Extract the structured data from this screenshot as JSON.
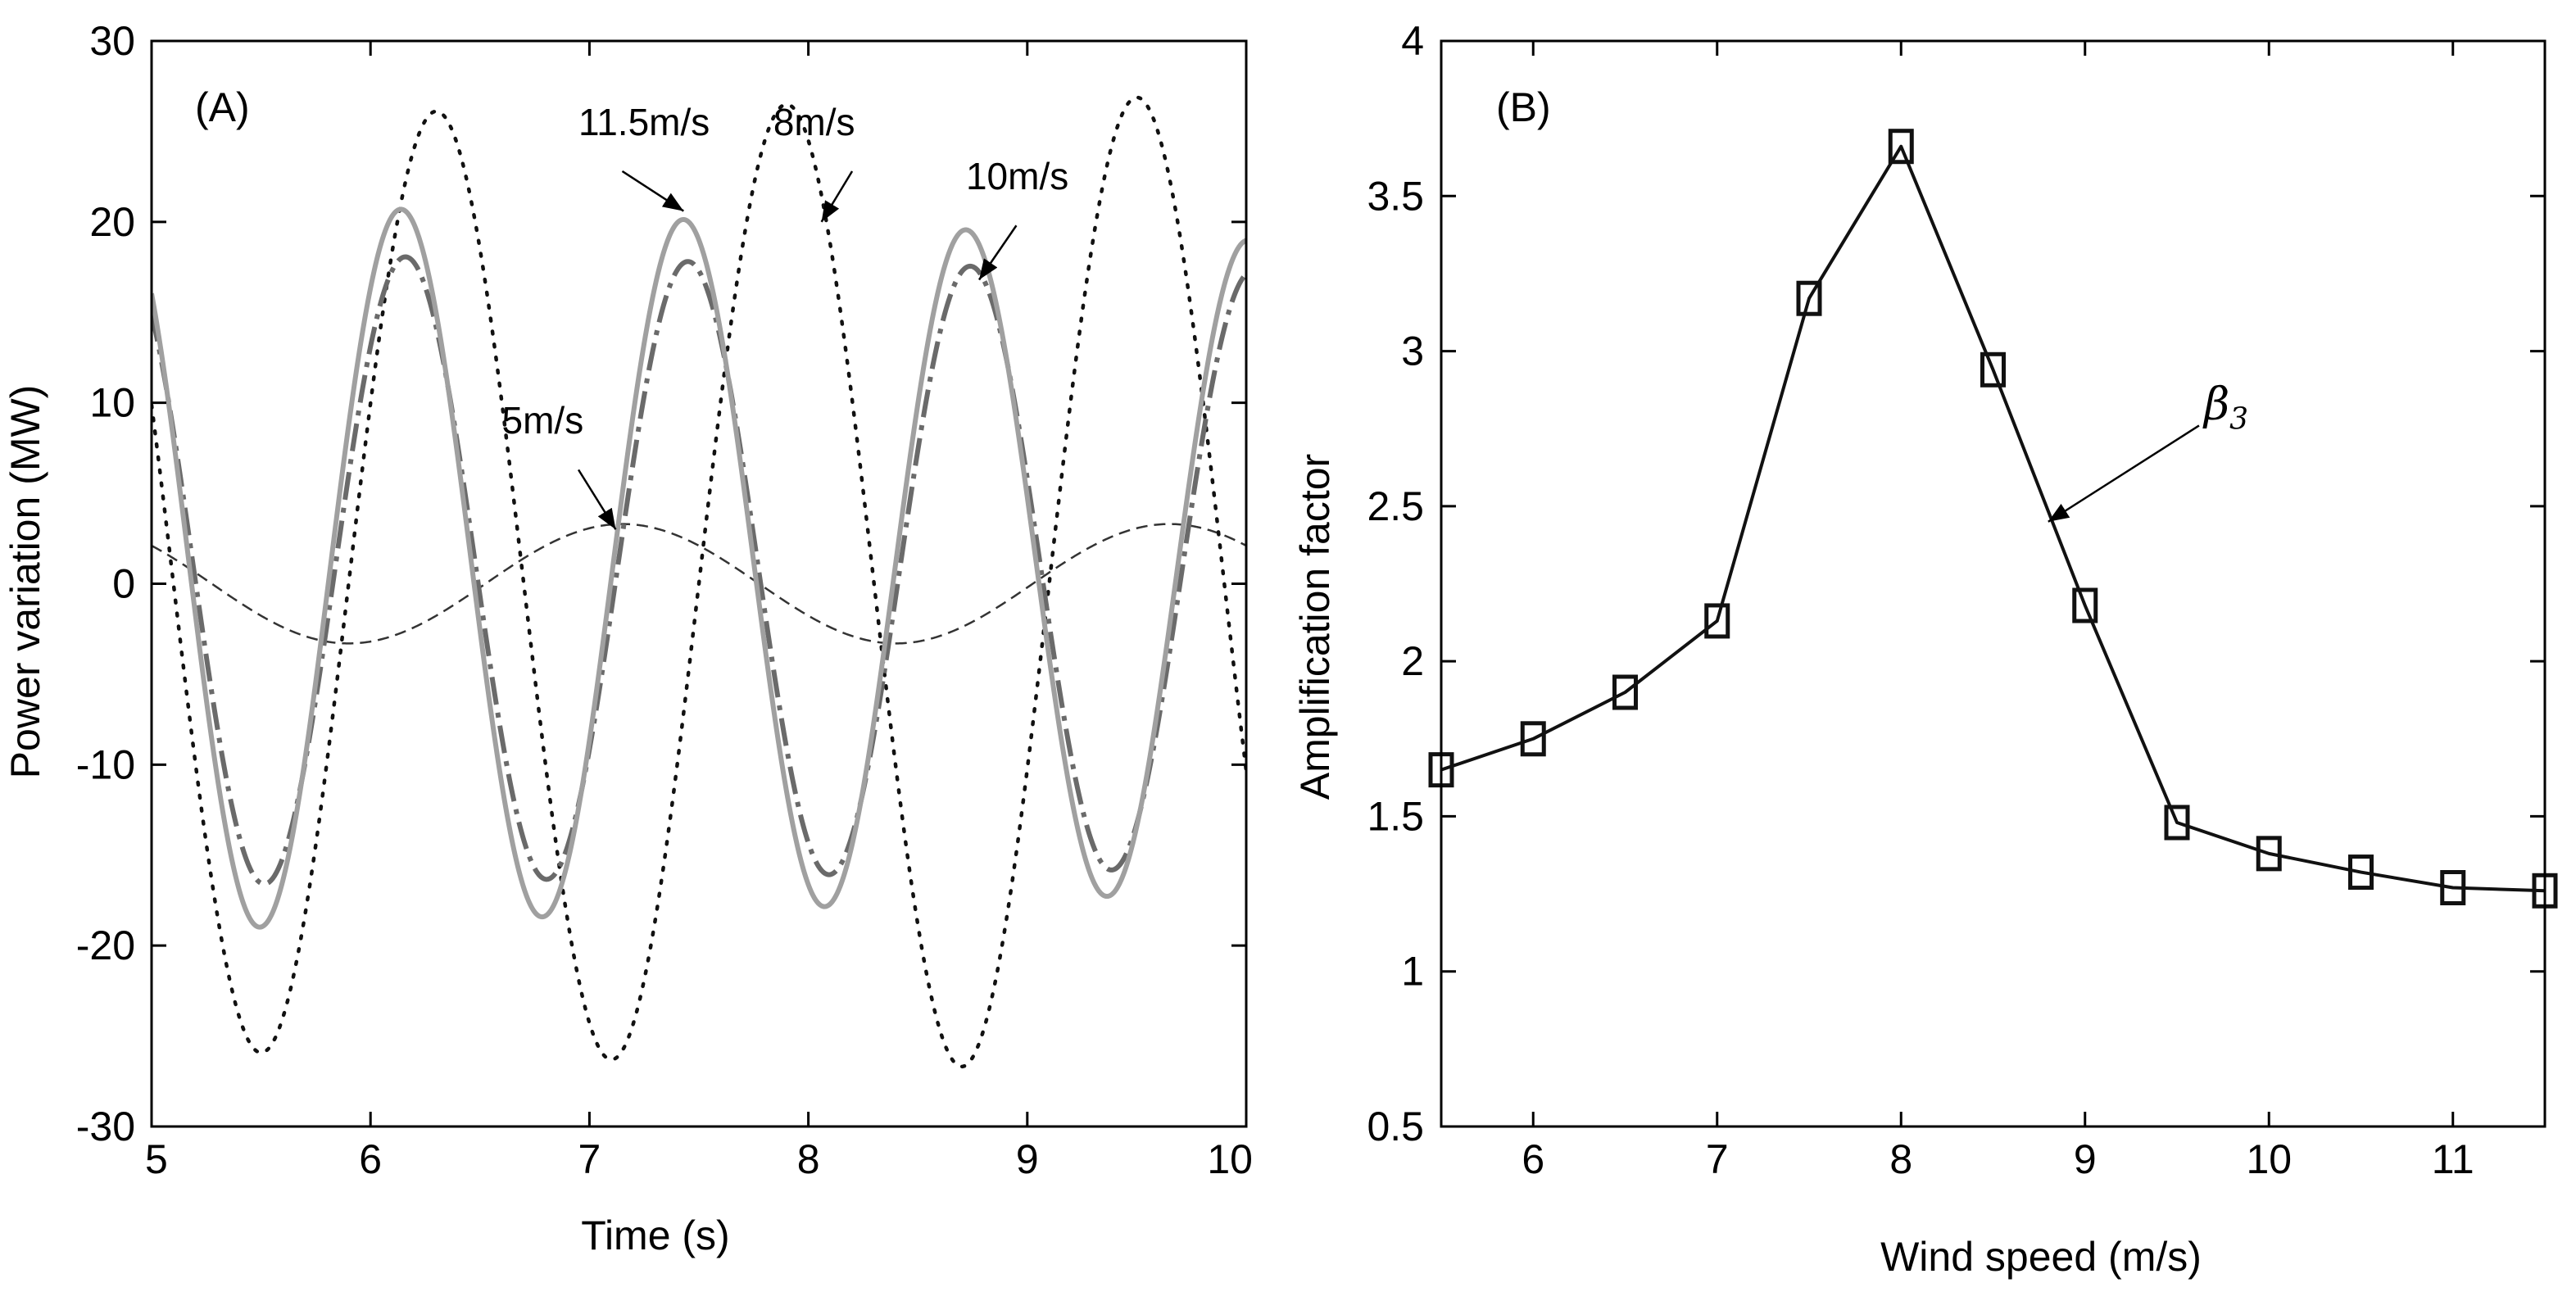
{
  "chart_data": [
    {
      "type": "line",
      "panel_label": "(A)",
      "xlabel": "Time (s)",
      "ylabel": "Power variation (MW)",
      "xlim": [
        5,
        10
      ],
      "ylim": [
        -30,
        30
      ],
      "xticks": [
        5,
        6,
        7,
        8,
        9,
        10
      ],
      "yticks": [
        -30,
        -20,
        -10,
        0,
        10,
        20,
        30
      ],
      "xtick_labels": [
        "5",
        "6",
        "7",
        "8",
        "9",
        "10"
      ],
      "ytick_labels": [
        "-30",
        "-20",
        "-10",
        "0",
        "10",
        "20",
        "30"
      ],
      "grid": false,
      "legend": "none",
      "series": [
        {
          "name": "5m/s",
          "style": "dashed",
          "color": "#333333",
          "function": "sine",
          "amplitude_start": 3.3,
          "amplitude_end": 3.3,
          "period": 2.5,
          "peak_time": 7.15,
          "offset": 0.0
        },
        {
          "name": "8m/s",
          "style": "dotted",
          "color": "#111111",
          "function": "sine",
          "amplitude_start": 25.8,
          "amplitude_end": 27.0,
          "period": 1.6,
          "peak_time": 6.3,
          "offset": 0.0
        },
        {
          "name": "10m/s",
          "style": "dash-dot",
          "color": "#6a6a6a",
          "function": "sine",
          "amplitude_start": 17.5,
          "amplitude_end": 16.5,
          "period": 1.29,
          "peak_time": 6.16,
          "offset": 0.8
        },
        {
          "name": "11.5m/s",
          "style": "solid",
          "color": "#a0a0a0",
          "function": "sine",
          "amplitude_start": 20.2,
          "amplitude_end": 18.0,
          "period": 1.29,
          "peak_time": 6.14,
          "offset": 1.0
        }
      ],
      "annotations": [
        {
          "text": "11.5m/s",
          "text_at": [
            6.95,
            24.8
          ],
          "arrow_from": [
            7.15,
            22.8
          ],
          "arrow_to": [
            7.43,
            20.6
          ]
        },
        {
          "text": "8m/s",
          "text_at": [
            7.84,
            24.8
          ],
          "arrow_from": [
            8.2,
            22.8
          ],
          "arrow_to": [
            8.06,
            20.0
          ]
        },
        {
          "text": "10m/s",
          "text_at": [
            8.72,
            21.8
          ],
          "arrow_from": [
            8.95,
            19.8
          ],
          "arrow_to": [
            8.78,
            16.8
          ]
        },
        {
          "text": "5m/s",
          "text_at": [
            6.6,
            8.3
          ],
          "arrow_from": [
            6.95,
            6.3
          ],
          "arrow_to": [
            7.12,
            3.0
          ]
        }
      ]
    },
    {
      "type": "line",
      "panel_label": "(B)",
      "xlabel": "Wind speed (m/s)",
      "ylabel": "Amplification factor",
      "xlim": [
        5.5,
        11.5
      ],
      "ylim": [
        0.5,
        4
      ],
      "xticks": [
        6,
        7,
        8,
        9,
        10,
        11
      ],
      "yticks": [
        0.5,
        1,
        1.5,
        2,
        2.5,
        3,
        3.5,
        4
      ],
      "xtick_labels": [
        "6",
        "7",
        "8",
        "9",
        "10",
        "11"
      ],
      "ytick_labels": [
        "0.5",
        "1",
        "1.5",
        "2",
        "2.5",
        "3",
        "3.5",
        "4"
      ],
      "grid": false,
      "legend": "none",
      "series": [
        {
          "name": "β3",
          "marker": "square",
          "color": "#111111",
          "x": [
            5.5,
            6,
            6.5,
            7,
            7.5,
            8,
            8.5,
            9,
            9.5,
            10,
            10.5,
            11,
            11.5
          ],
          "values": [
            1.65,
            1.75,
            1.9,
            2.13,
            3.17,
            3.66,
            2.94,
            2.18,
            1.48,
            1.38,
            1.32,
            1.27,
            1.26
          ]
        }
      ],
      "annotations": [
        {
          "text": "β",
          "subscript": "3",
          "text_at": [
            9.62,
            2.76
          ],
          "arrow_from": [
            9.62,
            2.76
          ],
          "arrow_to": [
            8.8,
            2.45
          ]
        }
      ]
    }
  ]
}
